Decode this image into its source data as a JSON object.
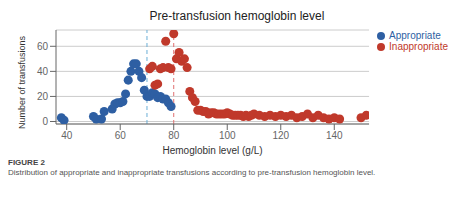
{
  "chart_data": {
    "type": "scatter",
    "title": "Pre-transfusion hemoglobin level",
    "x_label": "Hemoglobin level (g/L)",
    "y_label": "Number of transfusions",
    "xlim": [
      36,
      153
    ],
    "ylim": [
      -2,
      73
    ],
    "xticks": [
      40,
      60,
      80,
      100,
      120,
      140
    ],
    "yticks": [
      0,
      20,
      40,
      60
    ],
    "grid": true,
    "legend": "upper right",
    "series": [
      {
        "name": "Appropriate",
        "color": "#2E5FA3",
        "marker": "circle",
        "x": [
          38,
          39,
          50,
          51,
          53,
          54,
          57,
          58,
          59,
          60,
          61,
          62,
          63,
          64,
          65,
          66,
          67,
          68,
          69,
          70,
          71,
          72,
          73,
          74,
          75,
          76,
          77,
          78,
          79
        ],
        "values": [
          3,
          1,
          4,
          2,
          2,
          8,
          10,
          14,
          15,
          15,
          16,
          22,
          33,
          40,
          46,
          46,
          40,
          35,
          25,
          20,
          20,
          23,
          22,
          19,
          20,
          18,
          18,
          15,
          12
        ]
      },
      {
        "name": "Inappropriate",
        "color": "#C0392B",
        "marker": "circle",
        "x": [
          71,
          72,
          73,
          74,
          75,
          76,
          77,
          78,
          79,
          80,
          81,
          82,
          83,
          84,
          85,
          86,
          87,
          88,
          89,
          90,
          91,
          92,
          93,
          94,
          95,
          96,
          97,
          98,
          99,
          100,
          101,
          102,
          103,
          104,
          105,
          106,
          107,
          108,
          109,
          110,
          112,
          114,
          116,
          118,
          120,
          122,
          124,
          126,
          128,
          130,
          132,
          134,
          136,
          138,
          140,
          142,
          150,
          152
        ],
        "values": [
          42,
          44,
          29,
          30,
          42,
          43,
          64,
          43,
          42,
          70,
          50,
          55,
          48,
          50,
          43,
          24,
          19,
          16,
          9,
          9,
          8,
          8,
          6,
          7,
          7,
          6,
          6,
          6,
          6,
          7,
          6,
          5,
          5,
          5,
          5,
          4,
          5,
          4,
          5,
          6,
          5,
          4,
          5,
          4,
          5,
          4,
          5,
          3,
          4,
          6,
          3,
          5,
          3,
          2,
          3,
          2,
          3,
          5
        ]
      }
    ],
    "vlines": [
      {
        "x": 70,
        "color": "#6BAED6",
        "line_style": "dashed"
      },
      {
        "x": 80,
        "color": "#E07070",
        "line_style": "dashed"
      }
    ],
    "annotations": [
      "FIGURE 2",
      "Distribution of appropriate and inappropriate transfusions according to pre-transfusion hemoglobin level."
    ]
  }
}
